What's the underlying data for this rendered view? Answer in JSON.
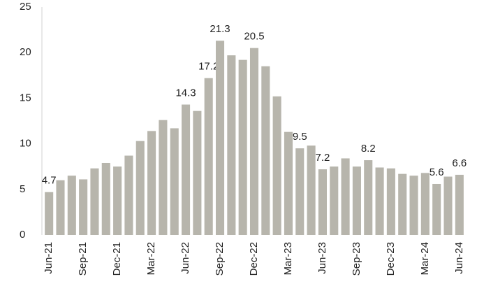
{
  "chart_data": {
    "type": "bar",
    "categories": [
      "Jun-21",
      null,
      null,
      "Sep-21",
      null,
      null,
      "Dec-21",
      null,
      null,
      "Mar-22",
      null,
      null,
      "Jun-22",
      null,
      null,
      "Sep-22",
      null,
      null,
      "Dec-22",
      null,
      null,
      "Mar-23",
      null,
      null,
      "Jun-23",
      null,
      null,
      "Sep-23",
      null,
      null,
      "Dec-23",
      null,
      null,
      "Mar-24",
      null,
      null,
      "Jun-24"
    ],
    "values": [
      4.7,
      6.0,
      6.5,
      6.1,
      7.3,
      7.9,
      7.5,
      8.7,
      10.3,
      11.4,
      12.6,
      11.7,
      14.3,
      13.6,
      17.2,
      21.3,
      19.7,
      19.2,
      20.5,
      18.5,
      15.2,
      11.3,
      9.5,
      9.8,
      7.2,
      7.5,
      8.4,
      7.5,
      8.2,
      7.4,
      7.3,
      6.7,
      6.5,
      6.8,
      5.6,
      6.4,
      6.6
    ],
    "value_labels": [
      "4.7",
      null,
      null,
      null,
      null,
      null,
      null,
      null,
      null,
      null,
      null,
      null,
      "14.3",
      null,
      "17.2",
      "21.3",
      null,
      null,
      "20.5",
      null,
      null,
      null,
      "9.5",
      null,
      "7.2",
      null,
      null,
      null,
      "8.2",
      null,
      null,
      null,
      null,
      null,
      "5.6",
      null,
      "6.6"
    ],
    "color": "#b7b5ac",
    "ylim": [
      0,
      25
    ],
    "yticks": [
      0,
      5,
      10,
      15,
      20,
      25
    ],
    "grid": false
  }
}
